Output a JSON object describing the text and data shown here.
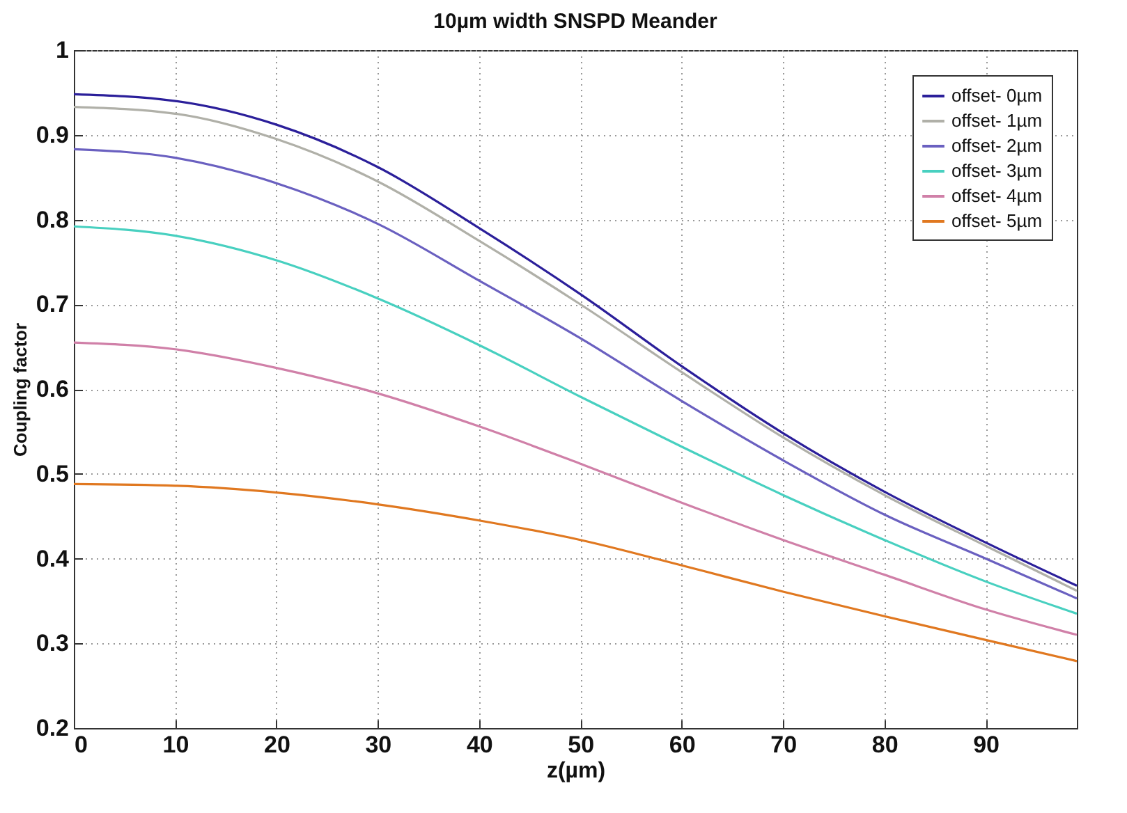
{
  "chart_data": {
    "type": "line",
    "title": "10µm width SNSPD Meander",
    "xlabel": "z(µm)",
    "ylabel": "Coupling factor",
    "x": [
      0,
      10,
      20,
      30,
      40,
      50,
      60,
      70,
      80,
      90,
      99
    ],
    "series": [
      {
        "name": "offset- 0µm",
        "color": "#2b1f9a",
        "values": [
          0.948,
          0.94,
          0.912,
          0.862,
          0.79,
          0.712,
          0.627,
          0.548,
          0.479,
          0.419,
          0.368
        ]
      },
      {
        "name": "offset- 1µm",
        "color": "#b0b0a8",
        "values": [
          0.933,
          0.925,
          0.895,
          0.845,
          0.775,
          0.7,
          0.62,
          0.543,
          0.475,
          0.415,
          0.362
        ]
      },
      {
        "name": "offset- 2µm",
        "color": "#6a60c0",
        "values": [
          0.883,
          0.873,
          0.843,
          0.795,
          0.728,
          0.66,
          0.586,
          0.516,
          0.452,
          0.4,
          0.353
        ]
      },
      {
        "name": "offset- 3µm",
        "color": "#48d0c0",
        "values": [
          0.792,
          0.781,
          0.752,
          0.707,
          0.652,
          0.591,
          0.532,
          0.475,
          0.422,
          0.373,
          0.335
        ]
      },
      {
        "name": "offset- 4µm",
        "color": "#d080a8",
        "values": [
          0.655,
          0.647,
          0.625,
          0.595,
          0.556,
          0.512,
          0.466,
          0.422,
          0.381,
          0.34,
          0.31
        ]
      },
      {
        "name": "offset- 5µm",
        "color": "#e07820",
        "values": [
          0.488,
          0.486,
          0.478,
          0.464,
          0.445,
          0.422,
          0.392,
          0.361,
          0.332,
          0.304,
          0.279
        ]
      }
    ],
    "xlim": [
      0,
      99
    ],
    "xticks": [
      0,
      10,
      20,
      30,
      40,
      50,
      60,
      70,
      80,
      90
    ],
    "ylim": [
      0.2,
      1
    ],
    "yticks": [
      0.2,
      0.3,
      0.4,
      0.5,
      0.6,
      0.7,
      0.8,
      0.9,
      {
        "value": 1,
        "label": "1"
      }
    ],
    "grid": true,
    "legend": "top right",
    "line_style": "solid",
    "marker": "none"
  }
}
